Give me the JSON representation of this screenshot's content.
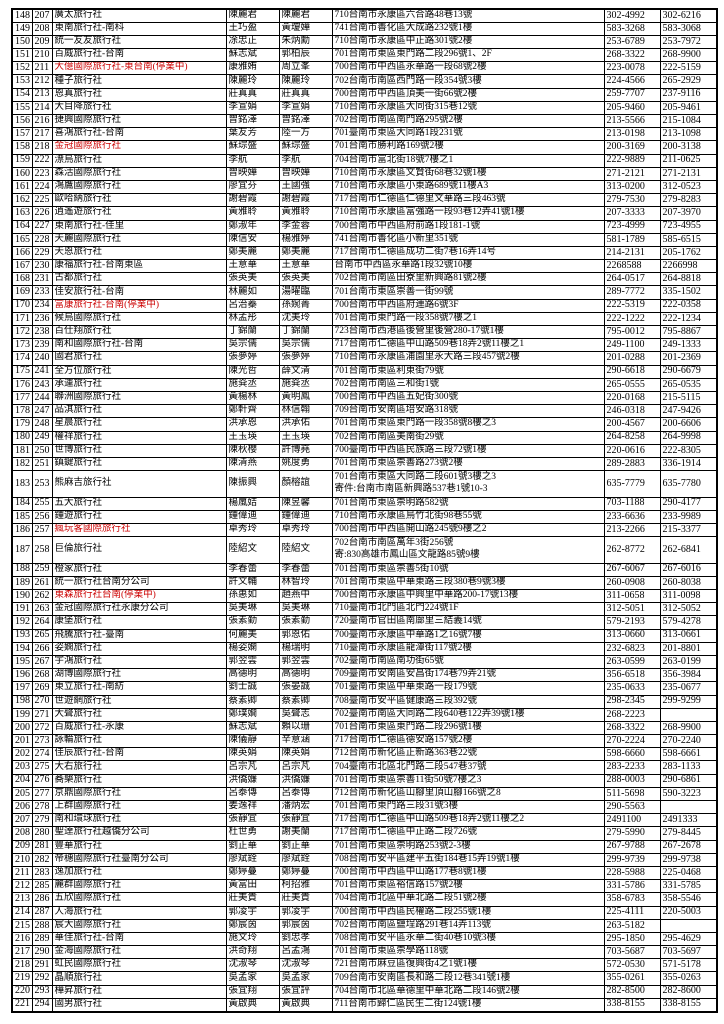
{
  "page": {
    "background": "#ffffff",
    "text_color": "#000000",
    "red_color": "#cc0000",
    "border_color": "#000000",
    "description": "travel-agency-register-table-page"
  },
  "table": {
    "columns": [
      "seq",
      "reg_no",
      "agency_name",
      "contact1",
      "contact2",
      "address",
      "tel",
      "fax"
    ],
    "rows": [
      {
        "n1": "148",
        "n2": "207",
        "name": "廣太旅行社",
        "red": false,
        "p1": "陳麗君",
        "p2": "陳麗君",
        "addr": "710台南市永康區六合路48巷13號",
        "tel1": "302-4992",
        "tel2": "302-6216"
      },
      {
        "n1": "149",
        "n2": "208",
        "name": "東南旅行社-南科",
        "red": false,
        "p1": "王巧盈",
        "p2": "黃瓊嬅",
        "addr": "741台南市善化區大成路232號1樓",
        "tel1": "583-3268",
        "tel2": "583-3068"
      },
      {
        "n1": "150",
        "n2": "209",
        "name": "統一友友旅行社",
        "red": false,
        "p1": "凃忠正",
        "p2": "朱炳勳",
        "addr": "710台南市永康區中正路301號2樓",
        "tel1": "253-6789",
        "tel2": "253-7972"
      },
      {
        "n1": "151",
        "n2": "210",
        "name": "百威旅行社-台南",
        "red": false,
        "p1": "蘇志斌",
        "p2": "郭柏辰",
        "addr": "701台南市東區東門路二段296號1、2F",
        "tel1": "268-3322",
        "tel2": "268-9900"
      },
      {
        "n1": "152",
        "n2": "211",
        "name": "大億國際旅行社-東台南(停業中)",
        "red": true,
        "p1": "康雅姷",
        "p2": "周立峯",
        "addr": "700台南市中西區永華路一段68號2樓",
        "tel1": "223-0078",
        "tel2": "222-5159"
      },
      {
        "n1": "153",
        "n2": "212",
        "name": "種子旅行社",
        "red": false,
        "p1": "陳麗玲",
        "p2": "陳麗玲",
        "addr": "702台南市南區西門路一段354號3樓",
        "tel1": "224-4566",
        "tel2": "265-2929"
      },
      {
        "n1": "154",
        "n2": "213",
        "name": "恩真旅行社",
        "red": false,
        "p1": "莊真真",
        "p2": "莊真真",
        "addr": "700台南市中西區頂美一街66號2樓",
        "tel1": "259-7707",
        "tel2": "237-9116"
      },
      {
        "n1": "155",
        "n2": "214",
        "name": "大目降旅行社",
        "red": false,
        "p1": "李宣娟",
        "p2": "李宣娟",
        "addr": "710台南市永康區大同街315巷12號",
        "tel1": "205-9460",
        "tel2": "205-9461"
      },
      {
        "n1": "156",
        "n2": "216",
        "name": "捷興國際旅行社",
        "red": false,
        "p1": "曾銘澤",
        "p2": "曾銘澤",
        "addr": "702台南市南區南門路295號2樓",
        "tel1": "213-5566",
        "tel2": "215-1084"
      },
      {
        "n1": "157",
        "n2": "217",
        "name": "喜鴻旅行社-台南",
        "red": false,
        "p1": "葉友芳",
        "p2": "陸一方",
        "addr": "701臺南市東區大同路1段231號",
        "tel1": "213-0198",
        "tel2": "213-1098"
      },
      {
        "n1": "158",
        "n2": "218",
        "name": "金冠國際旅行社",
        "red": true,
        "p1": "蘇琮盛",
        "p2": "蘇琮盛",
        "addr": "701台南市勝利路169號2樓",
        "tel1": "200-3169",
        "tel2": "200-3138"
      },
      {
        "n1": "159",
        "n2": "222",
        "name": "漂鳥旅行社",
        "red": false,
        "p1": "李航",
        "p2": "李航",
        "addr": "704台南市富北街18號7樓之1",
        "tel1": "222-9889",
        "tel2": "211-0625"
      },
      {
        "n1": "160",
        "n2": "223",
        "name": "森活國際旅行社",
        "red": false,
        "p1": "曾映嬅",
        "p2": "曾映嬅",
        "addr": "710台南市永康區文賢街68巷32號1樓",
        "tel1": "271-2121",
        "tel2": "271-2131"
      },
      {
        "n1": "161",
        "n2": "224",
        "name": "鴻鷹國際旅行社",
        "red": false,
        "p1": "廖宜芬",
        "p2": "王國強",
        "addr": "710台南市永康區小東路689號11樓A3",
        "tel1": "313-0200",
        "tel2": "312-0523"
      },
      {
        "n1": "162",
        "n2": "225",
        "name": "歐哈納旅行社",
        "red": false,
        "p1": "謝碧霞",
        "p2": "謝碧霞",
        "addr": "717台南市仁德區仁德里文華路三段463號",
        "tel1": "279-7530",
        "tel2": "279-8283"
      },
      {
        "n1": "163",
        "n2": "226",
        "name": "逍遙遊旅行社",
        "red": false,
        "p1": "黃雅聆",
        "p2": "黃雅聆",
        "addr": "710台南市永康區富強路一段93巷12弄41號1樓",
        "tel1": "207-3333",
        "tel2": "207-3970"
      },
      {
        "n1": "164",
        "n2": "227",
        "name": "東南旅行社-佳里",
        "red": false,
        "p1": "鄭淑年",
        "p2": "李金蓉",
        "addr": "700台南市中西區府前路1段181-1號",
        "tel1": "723-4999",
        "tel2": "723-4955"
      },
      {
        "n1": "165",
        "n2": "228",
        "name": "天麗國際旅行社",
        "red": false,
        "p1": "陳信安",
        "p2": "楊雅婷",
        "addr": "741台南市善化區小新里351號",
        "tel1": "581-1789",
        "tel2": "585-6515"
      },
      {
        "n1": "166",
        "n2": "229",
        "name": "天恩旅行社",
        "red": false,
        "p1": "鄭美麗",
        "p2": "鄭美麗",
        "addr": "717台南市仁德區成功二街7巷16弄14号",
        "tel1": "214-2131",
        "tel2": "205-1762"
      },
      {
        "n1": "167",
        "n2": "230",
        "name": "康福旅行社-台南東區",
        "red": false,
        "p1": "王意華",
        "p2": "王意華",
        "addr": "台南市中西區永華路1段32號10樓",
        "tel1": "2268588",
        "tel2": "2266998"
      },
      {
        "n1": "168",
        "n2": "231",
        "name": "古都旅行社",
        "red": false,
        "p1": "張英美",
        "p2": "張英美",
        "addr": "702台南市南區田寮里新興路81號2樓",
        "tel1": "264-0517",
        "tel2": "264-8818"
      },
      {
        "n1": "169",
        "n2": "233",
        "name": "佳安旅行社-台南",
        "red": false,
        "p1": "林麗如",
        "p2": "湯曜臨",
        "addr": "701台南市東區崇善一街99號",
        "tel1": "289-7772",
        "tel2": "335-1502"
      },
      {
        "n1": "170",
        "n2": "234",
        "name": "富康旅行社-台南(停業中)",
        "red": true,
        "p1": "呂治蓁",
        "p2": "孫婉菁",
        "addr": "700台南市中西區府連路6號3F",
        "tel1": "222-5319",
        "tel2": "222-0358"
      },
      {
        "n1": "171",
        "n2": "236",
        "name": "候鳥國際旅行社",
        "red": false,
        "p1": "林孟彤",
        "p2": "沈美玲",
        "addr": "701台南市東門路一段358號7樓之1",
        "tel1": "222-1222",
        "tel2": "222-1234"
      },
      {
        "n1": "172",
        "n2": "238",
        "name": "百仕翔旅行社",
        "red": false,
        "p1": "丁錦蘭",
        "p2": "丁錦蘭",
        "addr": "723台南市西港區後營里後營280-17號1樓",
        "tel1": "795-0012",
        "tel2": "795-8867"
      },
      {
        "n1": "173",
        "n2": "239",
        "name": "南和國際旅行社-台南",
        "red": false,
        "p1": "吳宗儒",
        "p2": "吳宗儒",
        "addr": "717台南市仁德區中山路509巷18弄2號11樓之1",
        "tel1": "249-1100",
        "tel2": "249-1333"
      },
      {
        "n1": "174",
        "n2": "240",
        "name": "國君旅行社",
        "red": false,
        "p1": "張夢婷",
        "p2": "張夢婷",
        "addr": "710台南市永康區浦園里永大路三段457號2樓",
        "tel1": "201-0288",
        "tel2": "201-2369"
      },
      {
        "n1": "175",
        "n2": "241",
        "name": "全方位旅行社",
        "red": false,
        "p1": "陳光哲",
        "p2": "薛文清",
        "addr": "701台南市東區利東街79號",
        "tel1": "290-6618",
        "tel2": "290-6679"
      },
      {
        "n1": "176",
        "n2": "243",
        "name": "承運旅行社",
        "red": false,
        "p1": "施烡丞",
        "p2": "施烡丞",
        "addr": "702台南市南區三和街1號",
        "tel1": "265-0555",
        "tel2": "265-0535"
      },
      {
        "n1": "177",
        "n2": "244",
        "name": "聯洲國際旅行社",
        "red": false,
        "p1": "黃楊林",
        "p2": "黃明鳳",
        "addr": "700台南市中西區五妃街300號",
        "tel1": "220-0168",
        "tel2": "215-5115"
      },
      {
        "n1": "178",
        "n2": "247",
        "name": "品淇旅行社",
        "red": false,
        "p1": "鄭軒齊",
        "p2": "林信翰",
        "addr": "709台南市安南區培安路318號",
        "tel1": "246-0318",
        "tel2": "247-9426"
      },
      {
        "n1": "179",
        "n2": "248",
        "name": "星晨旅行社",
        "red": false,
        "p1": "洪承恩",
        "p2": "洪承佑",
        "addr": "701台南市東區東門路一段358號8樓之3",
        "tel1": "200-4567",
        "tel2": "200-6606"
      },
      {
        "n1": "180",
        "n2": "249",
        "name": "權祥旅行社",
        "red": false,
        "p1": "王玉瑛",
        "p2": "王玉瑛",
        "addr": "702台南市南區美南街29號",
        "tel1": "264-8258",
        "tel2": "264-9998"
      },
      {
        "n1": "181",
        "n2": "250",
        "name": "世博旅行社",
        "red": false,
        "p1": "陳秋櫻",
        "p2": "許博堯",
        "addr": "700臺南市中西區民族路三段72號1樓",
        "tel1": "220-0616",
        "tel2": "222-8305"
      },
      {
        "n1": "182",
        "n2": "251",
        "name": "鎮鍵旅行社",
        "red": false,
        "p1": "陳清燕",
        "p2": "姚度勇",
        "addr": "701台南市東區崇善路273號2樓",
        "tel1": "289-2883",
        "tel2": "336-1914"
      },
      {
        "n1": "183",
        "n2": "253",
        "name": "熊麻吉旅行社",
        "red": false,
        "p1": "陳振興",
        "p2": "顏榕誼",
        "addr": "701台南市東區大同路二段601號3樓之3",
        "addr2": "寄件:台南市南區新興路537巷1號10-3",
        "tel1": "635-7779",
        "tel2": "635-7780"
      },
      {
        "n1": "184",
        "n2": "255",
        "name": "五大旅行社",
        "red": false,
        "p1": "楊嵐姞",
        "p2": "陳昱馨",
        "addr": "701台南市東區崇明路582號",
        "tel1": "703-1188",
        "tel2": "290-4177"
      },
      {
        "n1": "185",
        "n2": "256",
        "name": "鍾遊旅行社",
        "red": false,
        "p1": "鍾偉迪",
        "p2": "鍾偉迪",
        "addr": "710台南市永康區烏竹北街98巷55號",
        "tel1": "233-6636",
        "tel2": "233-9989"
      },
      {
        "n1": "186",
        "n2": "257",
        "name": "瘋玩客國際旅行社",
        "red": true,
        "p1": "卓秀玲",
        "p2": "卓秀玲",
        "addr": "700台南市中西區開山路245號9樓之2",
        "tel1": "213-2266",
        "tel2": "215-3377"
      },
      {
        "n1": "187",
        "n2": "258",
        "name": "巨倫旅行社",
        "red": false,
        "p1": "陸紹文",
        "p2": "陸紹文",
        "addr": "702台南市南區萬年3街256號",
        "addr2": "寄:830高雄市鳳山區文龍路85號9樓",
        "tel1": "262-8772",
        "tel2": "262-6841"
      },
      {
        "n1": "188",
        "n2": "259",
        "name": "橙家旅行社",
        "red": false,
        "p1": "李春蕾",
        "p2": "李春蕾",
        "addr": "701台南市東區崇善5街10號",
        "tel1": "267-6067",
        "tel2": "267-6016"
      },
      {
        "n1": "189",
        "n2": "261",
        "name": "統一旅行社台南分公司",
        "red": false,
        "p1": "許文輔",
        "p2": "林智玲",
        "addr": "701台南市東區中華東路三段380巷9號3樓",
        "tel1": "260-0908",
        "tel2": "260-8038"
      },
      {
        "n1": "190",
        "n2": "262",
        "name": "東森旅行社台南(停業中)",
        "red": true,
        "p1": "孫惠如",
        "p2": "趙燕中",
        "addr": "700台南市永康區中興里中華路200-17號13樓",
        "tel1": "311-0658",
        "tel2": "311-0098"
      },
      {
        "n1": "191",
        "n2": "263",
        "name": "金冠國際旅行社永康分公司",
        "red": false,
        "p1": "吳美琳",
        "p2": "吳美琳",
        "addr": "710臺南市北門區北門224號1F",
        "tel1": "312-5051",
        "tel2": "312-5052"
      },
      {
        "n1": "192",
        "n2": "264",
        "name": "康堡旅行社",
        "red": false,
        "p1": "張素勤",
        "p2": "張素勤",
        "addr": "720臺南市官田區南廍里三結義14號",
        "tel1": "579-2193",
        "tel2": "579-4278"
      },
      {
        "n1": "193",
        "n2": "265",
        "name": "飛騰旅行社-臺南",
        "red": false,
        "p1": "何麗美",
        "p2": "郭恩佑",
        "addr": "700臺南市永康區中華路1之16號7樓",
        "tel1": "313-0660",
        "tel2": "313-0661"
      },
      {
        "n1": "194",
        "n2": "266",
        "name": "姿嫻旅行社",
        "red": false,
        "p1": "楊姿嫻",
        "p2": "楊瑞明",
        "addr": "710臺南市永康區龍潭街117號2樓",
        "tel1": "232-6823",
        "tel2": "201-8801"
      },
      {
        "n1": "195",
        "n2": "267",
        "name": "宇鴻旅行社",
        "red": false,
        "p1": "郭翌雲",
        "p2": "郭翌雲",
        "addr": "702臺南市南區南功街65號",
        "tel1": "263-0599",
        "tel2": "263-0199"
      },
      {
        "n1": "196",
        "n2": "268",
        "name": "湖博國際旅行社",
        "red": false,
        "p1": "高德明",
        "p2": "高德明",
        "addr": "709臺南市安南區安昌街174巷79弄21號",
        "tel1": "356-6518",
        "tel2": "356-3984"
      },
      {
        "n1": "197",
        "n2": "269",
        "name": "東立旅行社-南紡",
        "red": false,
        "p1": "劉士誠",
        "p2": "張晏誠",
        "addr": "701臺南市東區中華東路一段179號",
        "tel1": "235-0633",
        "tel2": "235-0677"
      },
      {
        "n1": "198",
        "n2": "270",
        "name": "世遊網旅行社",
        "red": false,
        "p1": "蔡素卿",
        "p2": "蔡素卿",
        "addr": "708臺南市安平區健康路三段392號",
        "tel1": "298-2345",
        "tel2": "299-9299"
      },
      {
        "n1": "199",
        "n2": "271",
        "name": "大聲旅行社",
        "red": false,
        "p1": "鄭璞嫺",
        "p2": "吳聲志",
        "addr": "702臺南市南區大同路二段640巷122弄39號1樓",
        "tel1": "268-2223",
        "tel2": ""
      },
      {
        "n1": "200",
        "n2": "272",
        "name": "百威旅行社-永康",
        "red": false,
        "p1": "蘇志斌",
        "p2": "賴以珊",
        "addr": "701台南市東區東門路二段296號1樓",
        "tel1": "268-3322",
        "tel2": "268-9900"
      },
      {
        "n1": "201",
        "n2": "273",
        "name": "詠輪旅行社",
        "red": false,
        "p1": "陳儀靜",
        "p2": "辛意涵",
        "addr": "717台南市仁德區德安路157號2樓",
        "tel1": "270-2224",
        "tel2": "270-2240"
      },
      {
        "n1": "202",
        "n2": "274",
        "name": "佳辰旅行社-台南",
        "red": false,
        "p1": "陳英娟",
        "p2": "陳英娟",
        "addr": "712台南市新化區正新路363巷22號",
        "tel1": "598-6660",
        "tel2": "598-6661"
      },
      {
        "n1": "203",
        "n2": "275",
        "name": "大右旅行社",
        "red": false,
        "p1": "呂宗芃",
        "p2": "呂宗芃",
        "addr": "704臺南市北區北門路二段547巷37號",
        "tel1": "283-2233",
        "tel2": "283-1133"
      },
      {
        "n1": "204",
        "n2": "276",
        "name": "蕎樂旅行社",
        "red": false,
        "p1": "洪僑嬚",
        "p2": "洪僑嬚",
        "addr": "701台南市東區崇善11街50號7樓之3",
        "tel1": "288-0003",
        "tel2": "290-6861"
      },
      {
        "n1": "205",
        "n2": "277",
        "name": "京鼎國際旅行社",
        "red": false,
        "p1": "呂泰傳",
        "p2": "呂泰傳",
        "addr": "712台南市新化區山腳里頂山腳166號之8",
        "tel1": "511-5698",
        "tel2": "590-3223"
      },
      {
        "n1": "206",
        "n2": "278",
        "name": "上群國際旅行社",
        "red": false,
        "p1": "姜逸祥",
        "p2": "潘炳宏",
        "addr": "701台南市東門路三段31號3樓",
        "tel1": "290-5563",
        "tel2": ""
      },
      {
        "n1": "207",
        "n2": "279",
        "name": "南和環球旅行社",
        "red": false,
        "p1": "張靜宜",
        "p2": "張靜宜",
        "addr": "717台南市仁德區中山路509巷18弄2號11樓之2",
        "tel1": "2491100",
        "tel2": "2491333"
      },
      {
        "n1": "208",
        "n2": "280",
        "name": "聖達旅行社越僑分公司",
        "red": false,
        "p1": "杜世勇",
        "p2": "謝美蘭",
        "addr": "717台南市仁德區中正路二段726號",
        "tel1": "279-5990",
        "tel2": "279-8445"
      },
      {
        "n1": "209",
        "n2": "281",
        "name": "豐華旅行社",
        "red": false,
        "p1": "劉正華",
        "p2": "劉正華",
        "addr": "701台南市東區崇明路253號2-3樓",
        "tel1": "267-9788",
        "tel2": "267-2678"
      },
      {
        "n1": "210",
        "n2": "282",
        "name": "帝穗國際旅行社臺南分公司",
        "red": false,
        "p1": "廖斌銓",
        "p2": "廖斌銓",
        "addr": "708台南市安平區建平五街184巷15弄19號1樓",
        "tel1": "299-9739",
        "tel2": "299-9738"
      },
      {
        "n1": "211",
        "n2": "283",
        "name": "逸加旅行社",
        "red": false,
        "p1": "鄭婷蔓",
        "p2": "鄭婷蔓",
        "addr": "700台南市中西區中山路177巷8號1樓",
        "tel1": "228-5988",
        "tel2": "225-0468"
      },
      {
        "n1": "212",
        "n2": "285",
        "name": "麗群國際旅行社",
        "red": false,
        "p1": "黃富田",
        "p2": "柯招雅",
        "addr": "701台南市東區裕信路157號2樓",
        "tel1": "331-5786",
        "tel2": "331-5785"
      },
      {
        "n1": "213",
        "n2": "286",
        "name": "五欣國際旅行社",
        "red": false,
        "p1": "莊美貴",
        "p2": "莊美貴",
        "addr": "704台南市北區中華北路二段51號2樓",
        "tel1": "358-6783",
        "tel2": "358-5546"
      },
      {
        "n1": "214",
        "n2": "287",
        "name": "人海旅行社",
        "red": false,
        "p1": "郭凌宇",
        "p2": "郭凌宇",
        "addr": "700台南市中西區民權路二段255號1樓",
        "tel1": "225-4111",
        "tel2": "220-5003"
      },
      {
        "n1": "215",
        "n2": "288",
        "name": "宸大國際旅行社",
        "red": false,
        "p1": "鄭宸茵",
        "p2": "郭宸茵",
        "addr": "702台南市南區鹽埕路291巷14弄113號",
        "tel1": "263-5182",
        "tel2": ""
      },
      {
        "n1": "216",
        "n2": "289",
        "name": "華佳旅行社-台南",
        "red": false,
        "p1": "施文玲",
        "p2": "劉忠孝",
        "addr": "708台南市安平區永華二街40巷10號3樓",
        "tel1": "295-1850",
        "tel2": "295-4629"
      },
      {
        "n1": "217",
        "n2": "290",
        "name": "金海國際旅行社",
        "red": false,
        "p1": "洪奇翔",
        "p2": "呂孟鴻",
        "addr": "701台南市東區崇學路118號",
        "tel1": "703-5687",
        "tel2": "703-5697"
      },
      {
        "n1": "218",
        "n2": "291",
        "name": "虹民國際旅行社",
        "red": false,
        "p1": "沈淑琴",
        "p2": "沈淑琴",
        "addr": "721台南市麻豆區復興街4之1號1樓",
        "tel1": "572-0530",
        "tel2": "571-5178"
      },
      {
        "n1": "219",
        "n2": "292",
        "name": "晶順旅行社",
        "red": false,
        "p1": "吳孟家",
        "p2": "吳孟家",
        "addr": "709台南市安南區長和路二段12巷341號1樓",
        "tel1": "355-0261",
        "tel2": "355-0263"
      },
      {
        "n1": "220",
        "n2": "293",
        "name": "樺昇旅行社",
        "red": false,
        "p1": "張宜翔",
        "p2": "張宜評",
        "addr": "704台南市北區華德里中華北路二段146號2樓",
        "tel1": "282-8500",
        "tel2": "282-8600"
      },
      {
        "n1": "221",
        "n2": "294",
        "name": "國男旅行社",
        "red": false,
        "p1": "黃啟典",
        "p2": "黃啟典",
        "addr": "711台南市歸仁區民生二街124號1樓",
        "tel1": "338-8155",
        "tel2": "338-8155"
      }
    ]
  }
}
